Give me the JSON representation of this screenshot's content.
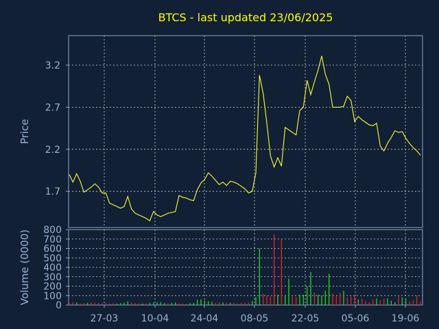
{
  "title": "BTCS - last updated 23/06/2025",
  "colors": {
    "background": "#112035",
    "title": "#ffff00",
    "price_line": "#ffff33",
    "volume_up": "#22cc22",
    "volume_down": "#dd2222",
    "axis_text": "#9ab3cf",
    "grid": "#d8d8d8"
  },
  "chart_data": [
    {
      "type": "line",
      "title": "BTCS - last updated 23/06/2025",
      "ylabel": "Price",
      "ylim": [
        1.27,
        3.55
      ],
      "y_ticks": [
        1.7,
        2.2,
        2.7,
        3.2
      ],
      "y_tick_labels": [
        "1.7",
        "2.2",
        "2.7",
        "3.2"
      ],
      "x_tick_labels": [
        "27-03",
        "10-04",
        "24-04",
        "08-05",
        "22-05",
        "05-06",
        "19-06"
      ],
      "grid": true,
      "series": [
        {
          "values": [
            1.9,
            1.81,
            1.91,
            1.82,
            1.69,
            1.72,
            1.75,
            1.79,
            1.75,
            1.68,
            1.68,
            1.56,
            1.54,
            1.52,
            1.5,
            1.52,
            1.64,
            1.49,
            1.44,
            1.42,
            1.4,
            1.38,
            1.35,
            1.46,
            1.42,
            1.4,
            1.42,
            1.44,
            1.45,
            1.46,
            1.65,
            1.63,
            1.62,
            1.6,
            1.59,
            1.72,
            1.8,
            1.84,
            1.92,
            1.88,
            1.83,
            1.78,
            1.81,
            1.77,
            1.82,
            1.81,
            1.79,
            1.76,
            1.73,
            1.68,
            1.7,
            1.92,
            3.08,
            2.86,
            2.51,
            2.12,
            1.99,
            2.1,
            2.0,
            2.46,
            2.43,
            2.4,
            2.37,
            2.66,
            2.7,
            3.02,
            2.85,
            3.0,
            3.14,
            3.31,
            3.09,
            2.97,
            2.7,
            2.7,
            2.7,
            2.71,
            2.83,
            2.78,
            2.53,
            2.59,
            2.55,
            2.52,
            2.49,
            2.48,
            2.51,
            2.24,
            2.18,
            2.27,
            2.34,
            2.42,
            2.4,
            2.41,
            2.33,
            2.27,
            2.22,
            2.18,
            2.13
          ]
        }
      ]
    },
    {
      "type": "bar",
      "ylabel": "Volume (0000)",
      "ylim": [
        0,
        800
      ],
      "y_ticks": [
        0,
        100,
        200,
        300,
        400,
        500,
        600,
        700,
        800
      ],
      "y_tick_labels": [
        "0",
        "100",
        "200",
        "300",
        "400",
        "500",
        "600",
        "700",
        "800"
      ],
      "x_tick_labels": [
        "27-03",
        "10-04",
        "24-04",
        "08-05",
        "22-05",
        "05-06",
        "19-06"
      ],
      "grid": true,
      "series": [
        {
          "values": [
            22,
            28,
            26,
            18,
            20,
            24,
            30,
            22,
            25,
            20,
            22,
            15,
            18,
            16,
            20,
            25,
            40,
            28,
            22,
            18,
            16,
            20,
            24,
            26,
            30,
            32,
            22,
            20,
            24,
            28,
            18,
            16,
            14,
            20,
            22,
            55,
            60,
            48,
            40,
            35,
            22,
            30,
            28,
            24,
            26,
            22,
            18,
            20,
            24,
            28,
            40,
            85,
            600,
            120,
            100,
            90,
            750,
            110,
            700,
            100,
            280,
            90,
            85,
            110,
            110,
            200,
            350,
            130,
            110,
            100,
            150,
            330,
            120,
            90,
            130,
            150,
            80,
            90,
            100,
            60,
            70,
            40,
            30,
            60,
            70,
            50,
            65,
            70,
            45,
            30,
            100,
            80,
            60,
            40,
            50,
            100,
            40
          ],
          "direction": [
            "d",
            "d",
            "u",
            "d",
            "d",
            "u",
            "d",
            "d",
            "d",
            "d",
            "d",
            "d",
            "d",
            "u",
            "u",
            "u",
            "u",
            "d",
            "d",
            "d",
            "u",
            "d",
            "u",
            "u",
            "u",
            "u",
            "u",
            "d",
            "u",
            "u",
            "d",
            "d",
            "d",
            "u",
            "u",
            "u",
            "u",
            "u",
            "u",
            "u",
            "d",
            "d",
            "u",
            "d",
            "u",
            "d",
            "d",
            "d",
            "d",
            "d",
            "u",
            "u",
            "u",
            "d",
            "d",
            "d",
            "d",
            "u",
            "d",
            "u",
            "u",
            "d",
            "d",
            "u",
            "u",
            "u",
            "u",
            "d",
            "u",
            "u",
            "u",
            "u",
            "d",
            "d",
            "d",
            "u",
            "d",
            "d",
            "d",
            "u",
            "d",
            "d",
            "d",
            "d",
            "u",
            "d",
            "d",
            "u",
            "u",
            "u",
            "d",
            "u",
            "u",
            "d",
            "d",
            "d",
            "d"
          ]
        }
      ]
    }
  ]
}
